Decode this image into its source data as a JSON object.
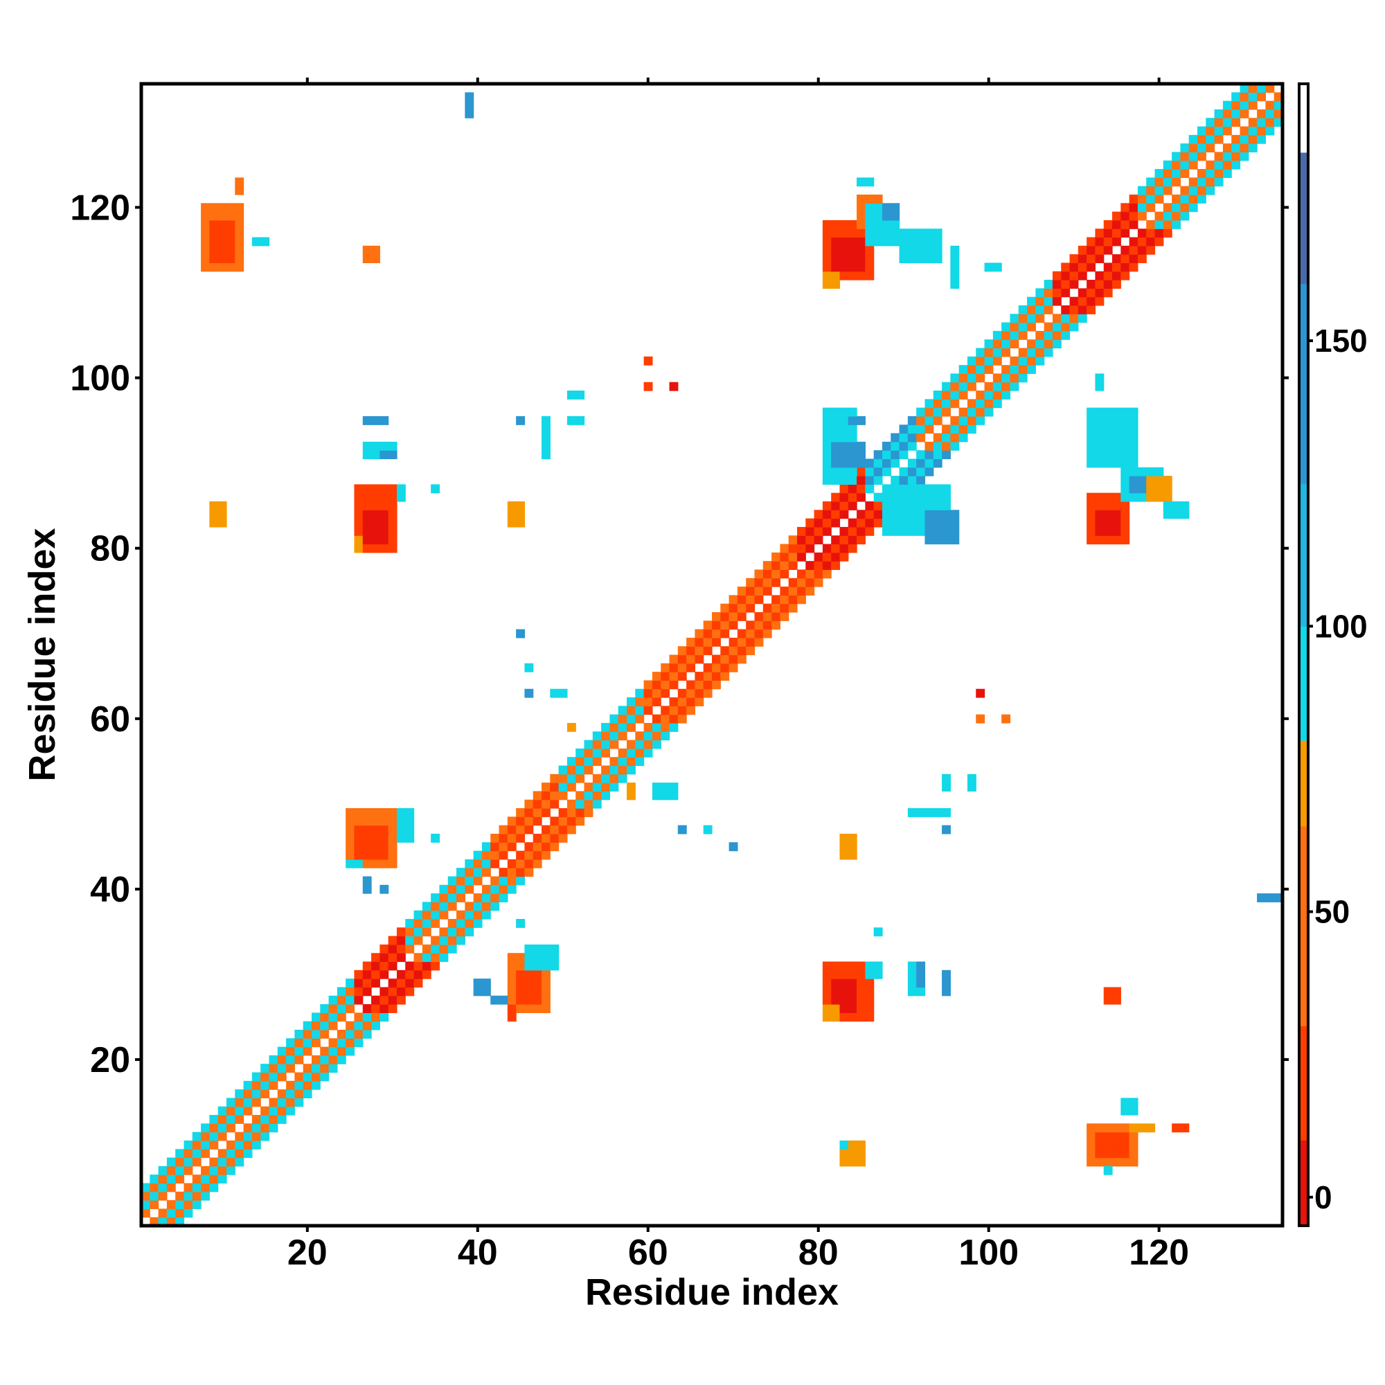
{
  "chart_data": {
    "type": "heatmap",
    "title": "",
    "xlabel": "Residue index",
    "ylabel": "Residue index",
    "xlim": [
      0.5,
      134.5
    ],
    "ylim": [
      0.5,
      134.5
    ],
    "x_ticks": [
      20,
      40,
      60,
      80,
      100,
      120
    ],
    "y_ticks": [
      20,
      40,
      60,
      80,
      100,
      120
    ],
    "x_tick_labels": [
      "20",
      "40",
      "60",
      "80",
      "100",
      "120"
    ],
    "y_tick_labels": [
      "20",
      "40",
      "60",
      "80",
      "100",
      "120"
    ],
    "grid": false,
    "legend": "colorbar-right",
    "colorbar": {
      "range": [
        -5,
        195
      ],
      "ticks": [
        0,
        50,
        100,
        150
      ],
      "tick_labels": [
        "0",
        "50",
        "100",
        "150"
      ],
      "stops": [
        {
          "from": -5,
          "to": 10,
          "color": "#e8120c"
        },
        {
          "from": 10,
          "to": 30,
          "color": "#ff3d00"
        },
        {
          "from": 30,
          "to": 65,
          "color": "#ff7010"
        },
        {
          "from": 65,
          "to": 80,
          "color": "#f79a00"
        },
        {
          "from": 80,
          "to": 100,
          "color": "#12d8e8"
        },
        {
          "from": 100,
          "to": 125,
          "color": "#21b6e0"
        },
        {
          "from": 125,
          "to": 160,
          "color": "#2b96d0"
        },
        {
          "from": 160,
          "to": 183,
          "color": "#4a6aa8"
        },
        {
          "from": 183,
          "to": 195,
          "color": "#ffffff"
        }
      ]
    },
    "cell_colors": {
      "R": "#e8120c",
      "r": "#ff3d00",
      "o": "#ff7010",
      "y": "#f79a00",
      "c": "#12d8e8",
      "b": "#2b96d0",
      "n": "#4a6aa8"
    },
    "diagonal_band": {
      "from": 1,
      "to": 134,
      "segments": [
        {
          "from": 1,
          "to": 10,
          "near": "o",
          "alt": "c"
        },
        {
          "from": 10,
          "to": 26,
          "near": "o",
          "alt": "c"
        },
        {
          "from": 26,
          "to": 32,
          "near": "R",
          "alt": "r"
        },
        {
          "from": 32,
          "to": 42,
          "near": "o",
          "alt": "c"
        },
        {
          "from": 42,
          "to": 50,
          "near": "r",
          "alt": "o"
        },
        {
          "from": 50,
          "to": 60,
          "near": "o",
          "alt": "c"
        },
        {
          "from": 60,
          "to": 78,
          "near": "r",
          "alt": "o"
        },
        {
          "from": 78,
          "to": 86,
          "near": "R",
          "alt": "r"
        },
        {
          "from": 86,
          "to": 92,
          "near": "c",
          "alt": "b"
        },
        {
          "from": 92,
          "to": 108,
          "near": "o",
          "alt": "c"
        },
        {
          "from": 108,
          "to": 118,
          "near": "R",
          "alt": "r"
        },
        {
          "from": 118,
          "to": 134,
          "near": "o",
          "alt": "c"
        }
      ]
    },
    "contact_blocks": [
      {
        "x": [
          8,
          12
        ],
        "y": [
          113,
          120
        ],
        "color": "o"
      },
      {
        "x": [
          9,
          11
        ],
        "y": [
          114,
          118
        ],
        "color": "r"
      },
      {
        "x": [
          12,
          12
        ],
        "y": [
          122,
          123
        ],
        "color": "o"
      },
      {
        "x": [
          14,
          15
        ],
        "y": [
          116,
          116
        ],
        "color": "c"
      },
      {
        "x": [
          27,
          28
        ],
        "y": [
          114,
          115
        ],
        "color": "o"
      },
      {
        "x": [
          39,
          39
        ],
        "y": [
          131,
          133
        ],
        "color": "b"
      },
      {
        "x": [
          81,
          86
        ],
        "y": [
          112,
          118
        ],
        "color": "r"
      },
      {
        "x": [
          82,
          85
        ],
        "y": [
          113,
          116
        ],
        "color": "R"
      },
      {
        "x": [
          81,
          82
        ],
        "y": [
          111,
          112
        ],
        "color": "y"
      },
      {
        "x": [
          85,
          87
        ],
        "y": [
          118,
          121
        ],
        "color": "o"
      },
      {
        "x": [
          85,
          86
        ],
        "y": [
          123,
          123
        ],
        "color": "c"
      },
      {
        "x": [
          86,
          89
        ],
        "y": [
          116,
          120
        ],
        "color": "c"
      },
      {
        "x": [
          88,
          89
        ],
        "y": [
          119,
          120
        ],
        "color": "b"
      },
      {
        "x": [
          90,
          94
        ],
        "y": [
          114,
          117
        ],
        "color": "c"
      },
      {
        "x": [
          96,
          96
        ],
        "y": [
          111,
          115
        ],
        "color": "c"
      },
      {
        "x": [
          100,
          101
        ],
        "y": [
          113,
          113
        ],
        "color": "c"
      },
      {
        "x": [
          26,
          30
        ],
        "y": [
          80,
          87
        ],
        "color": "r"
      },
      {
        "x": [
          27,
          29
        ],
        "y": [
          81,
          84
        ],
        "color": "R"
      },
      {
        "x": [
          26,
          26
        ],
        "y": [
          80,
          81
        ],
        "color": "y"
      },
      {
        "x": [
          31,
          31
        ],
        "y": [
          86,
          87
        ],
        "color": "c"
      },
      {
        "x": [
          35,
          35
        ],
        "y": [
          87,
          87
        ],
        "color": "c"
      },
      {
        "x": [
          9,
          10
        ],
        "y": [
          83,
          85
        ],
        "color": "y"
      },
      {
        "x": [
          44,
          45
        ],
        "y": [
          83,
          85
        ],
        "color": "y"
      },
      {
        "x": [
          27,
          29
        ],
        "y": [
          95,
          95
        ],
        "color": "b"
      },
      {
        "x": [
          27,
          30
        ],
        "y": [
          91,
          92
        ],
        "color": "c"
      },
      {
        "x": [
          29,
          30
        ],
        "y": [
          91,
          91
        ],
        "color": "b"
      },
      {
        "x": [
          45,
          45
        ],
        "y": [
          95,
          95
        ],
        "color": "b"
      },
      {
        "x": [
          48,
          48
        ],
        "y": [
          91,
          95
        ],
        "color": "c"
      },
      {
        "x": [
          51,
          52
        ],
        "y": [
          98,
          98
        ],
        "color": "c"
      },
      {
        "x": [
          51,
          52
        ],
        "y": [
          95,
          95
        ],
        "color": "c"
      },
      {
        "x": [
          60,
          60
        ],
        "y": [
          102,
          102
        ],
        "color": "r"
      },
      {
        "x": [
          60,
          60
        ],
        "y": [
          99,
          99
        ],
        "color": "r"
      },
      {
        "x": [
          63,
          63
        ],
        "y": [
          99,
          99
        ],
        "color": "R"
      },
      {
        "x": [
          81,
          84
        ],
        "y": [
          88,
          96
        ],
        "color": "c"
      },
      {
        "x": [
          82,
          85
        ],
        "y": [
          90,
          92
        ],
        "color": "b"
      },
      {
        "x": [
          84,
          85
        ],
        "y": [
          95,
          95
        ],
        "color": "b"
      },
      {
        "x": [
          88,
          95
        ],
        "y": [
          82,
          87
        ],
        "color": "c"
      },
      {
        "x": [
          93,
          96
        ],
        "y": [
          81,
          84
        ],
        "color": "b"
      },
      {
        "x": [
          112,
          116
        ],
        "y": [
          81,
          86
        ],
        "color": "r"
      },
      {
        "x": [
          113,
          115
        ],
        "y": [
          82,
          84
        ],
        "color": "R"
      },
      {
        "x": [
          116,
          120
        ],
        "y": [
          86,
          89
        ],
        "color": "c"
      },
      {
        "x": [
          117,
          119
        ],
        "y": [
          87,
          88
        ],
        "color": "b"
      },
      {
        "x": [
          112,
          117
        ],
        "y": [
          90,
          96
        ],
        "color": "c"
      },
      {
        "x": [
          113,
          113
        ],
        "y": [
          99,
          100
        ],
        "color": "c"
      },
      {
        "x": [
          119,
          121
        ],
        "y": [
          86,
          88
        ],
        "color": "y"
      },
      {
        "x": [
          121,
          123
        ],
        "y": [
          84,
          85
        ],
        "color": "c"
      },
      {
        "x": [
          25,
          30
        ],
        "y": [
          43,
          49
        ],
        "color": "o"
      },
      {
        "x": [
          26,
          29
        ],
        "y": [
          44,
          47
        ],
        "color": "r"
      },
      {
        "x": [
          31,
          32
        ],
        "y": [
          46,
          49
        ],
        "color": "c"
      },
      {
        "x": [
          25,
          26
        ],
        "y": [
          43,
          43
        ],
        "color": "c"
      },
      {
        "x": [
          27,
          27
        ],
        "y": [
          40,
          41
        ],
        "color": "b"
      },
      {
        "x": [
          29,
          29
        ],
        "y": [
          40,
          40
        ],
        "color": "b"
      },
      {
        "x": [
          35,
          35
        ],
        "y": [
          46,
          46
        ],
        "color": "c"
      },
      {
        "x": [
          44,
          48
        ],
        "y": [
          26,
          32
        ],
        "color": "o"
      },
      {
        "x": [
          45,
          47
        ],
        "y": [
          27,
          30
        ],
        "color": "r"
      },
      {
        "x": [
          46,
          49
        ],
        "y": [
          31,
          33
        ],
        "color": "c"
      },
      {
        "x": [
          44,
          44
        ],
        "y": [
          25,
          26
        ],
        "color": "r"
      },
      {
        "x": [
          40,
          41
        ],
        "y": [
          28,
          29
        ],
        "color": "b"
      },
      {
        "x": [
          42,
          43
        ],
        "y": [
          27,
          27
        ],
        "color": "b"
      },
      {
        "x": [
          45,
          45
        ],
        "y": [
          36,
          36
        ],
        "color": "c"
      },
      {
        "x": [
          81,
          86
        ],
        "y": [
          25,
          31
        ],
        "color": "r"
      },
      {
        "x": [
          82,
          84
        ],
        "y": [
          26,
          29
        ],
        "color": "R"
      },
      {
        "x": [
          81,
          82
        ],
        "y": [
          25,
          26
        ],
        "color": "y"
      },
      {
        "x": [
          86,
          87
        ],
        "y": [
          30,
          31
        ],
        "color": "c"
      },
      {
        "x": [
          87,
          87
        ],
        "y": [
          35,
          35
        ],
        "color": "c"
      },
      {
        "x": [
          91,
          92
        ],
        "y": [
          28,
          31
        ],
        "color": "c"
      },
      {
        "x": [
          92,
          92
        ],
        "y": [
          29,
          31
        ],
        "color": "b"
      },
      {
        "x": [
          95,
          95
        ],
        "y": [
          28,
          30
        ],
        "color": "b"
      },
      {
        "x": [
          83,
          84
        ],
        "y": [
          44,
          46
        ],
        "color": "y"
      },
      {
        "x": [
          91,
          95
        ],
        "y": [
          49,
          49
        ],
        "color": "c"
      },
      {
        "x": [
          95,
          95
        ],
        "y": [
          47,
          47
        ],
        "color": "b"
      },
      {
        "x": [
          95,
          95
        ],
        "y": [
          52,
          53
        ],
        "color": "c"
      },
      {
        "x": [
          98,
          98
        ],
        "y": [
          52,
          53
        ],
        "color": "c"
      },
      {
        "x": [
          99,
          99
        ],
        "y": [
          63,
          63
        ],
        "color": "R"
      },
      {
        "x": [
          99,
          99
        ],
        "y": [
          60,
          60
        ],
        "color": "o"
      },
      {
        "x": [
          102,
          102
        ],
        "y": [
          60,
          60
        ],
        "color": "o"
      },
      {
        "x": [
          112,
          117
        ],
        "y": [
          8,
          12
        ],
        "color": "o"
      },
      {
        "x": [
          113,
          116
        ],
        "y": [
          9,
          11
        ],
        "color": "r"
      },
      {
        "x": [
          116,
          117
        ],
        "y": [
          14,
          15
        ],
        "color": "c"
      },
      {
        "x": [
          117,
          119
        ],
        "y": [
          12,
          12
        ],
        "color": "y"
      },
      {
        "x": [
          122,
          123
        ],
        "y": [
          12,
          12
        ],
        "color": "r"
      },
      {
        "x": [
          114,
          114
        ],
        "y": [
          7,
          7
        ],
        "color": "c"
      },
      {
        "x": [
          83,
          85
        ],
        "y": [
          8,
          10
        ],
        "color": "y"
      },
      {
        "x": [
          83,
          83
        ],
        "y": [
          10,
          10
        ],
        "color": "c"
      },
      {
        "x": [
          114,
          115
        ],
        "y": [
          27,
          28
        ],
        "color": "r"
      },
      {
        "x": [
          132,
          134
        ],
        "y": [
          39,
          39
        ],
        "color": "b"
      },
      {
        "x": [
          45,
          45
        ],
        "y": [
          70,
          70
        ],
        "color": "b"
      },
      {
        "x": [
          46,
          46
        ],
        "y": [
          66,
          66
        ],
        "color": "c"
      },
      {
        "x": [
          46,
          46
        ],
        "y": [
          63,
          63
        ],
        "color": "b"
      },
      {
        "x": [
          49,
          50
        ],
        "y": [
          63,
          63
        ],
        "color": "c"
      },
      {
        "x": [
          51,
          51
        ],
        "y": [
          59,
          59
        ],
        "color": "y"
      },
      {
        "x": [
          58,
          58
        ],
        "y": [
          51,
          52
        ],
        "color": "y"
      },
      {
        "x": [
          61,
          63
        ],
        "y": [
          51,
          52
        ],
        "color": "c"
      },
      {
        "x": [
          64,
          64
        ],
        "y": [
          47,
          47
        ],
        "color": "b"
      },
      {
        "x": [
          67,
          67
        ],
        "y": [
          47,
          47
        ],
        "color": "c"
      },
      {
        "x": [
          70,
          70
        ],
        "y": [
          45,
          45
        ],
        "color": "b"
      }
    ]
  }
}
